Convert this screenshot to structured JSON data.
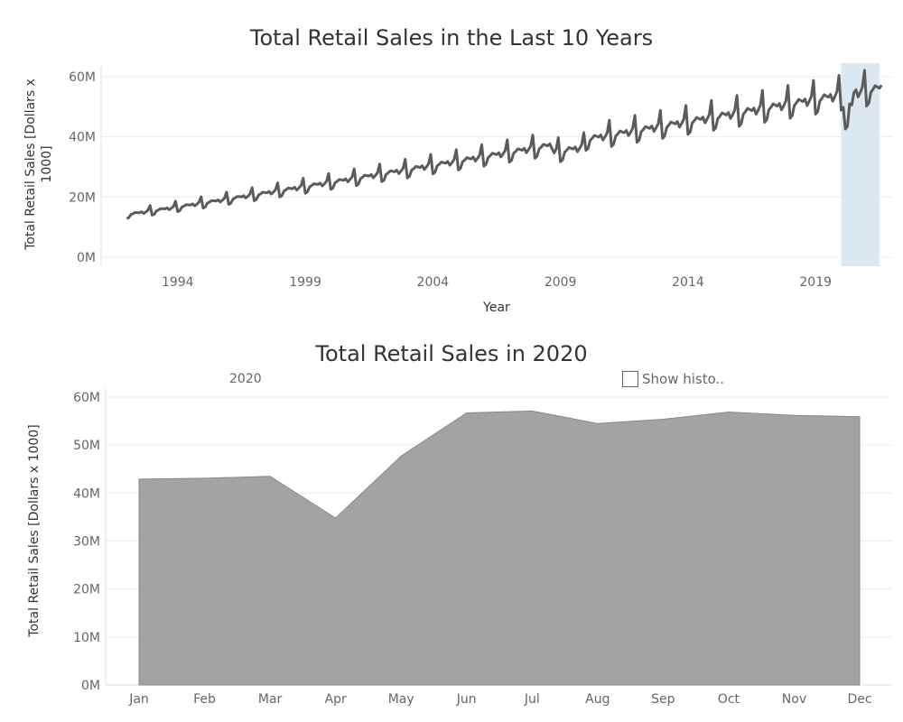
{
  "chart_data": [
    {
      "type": "line",
      "title": "Total Retail Sales in the Last 10 Years",
      "xlabel": "Year",
      "ylabel_lines": [
        "Total Retail Sales [Dollars x",
        "1000]"
      ],
      "x_ticks": [
        1994,
        1999,
        2004,
        2009,
        2014,
        2019
      ],
      "y_ticks": [
        "0M",
        "20M",
        "40M",
        "60M"
      ],
      "y_tick_values": [
        0,
        20000000,
        40000000,
        60000000
      ],
      "xlim": [
        1991,
        2022
      ],
      "ylim": [
        0,
        60000000
      ],
      "highlight_range": [
        2020.0,
        2021.5
      ],
      "highlight_color": "#dbe8ef",
      "line_color": "#5b5b5b",
      "start_year": 1992,
      "end_year": 2021.6,
      "base_start": 14000000,
      "base_end": 55500000,
      "seasonal_pattern": [
        -1.6,
        -1.3,
        0.0,
        0.3,
        0.7,
        0.5,
        0.3,
        0.6,
        -0.3,
        0.2,
        0.8,
        2.8
      ],
      "yearly_values": [
        {
          "year": 1992,
          "value": 13500000
        },
        {
          "year": 1995,
          "value": 17000000
        },
        {
          "year": 2000,
          "value": 22000000
        },
        {
          "year": 2005,
          "value": 29000000
        },
        {
          "year": 2010,
          "value": 32000000
        },
        {
          "year": 2015,
          "value": 41000000
        },
        {
          "year": 2019,
          "value": 49000000
        },
        {
          "year": 2020,
          "value": 50000000
        },
        {
          "year": 2021.5,
          "value": 60000000
        }
      ]
    },
    {
      "type": "area",
      "title": "Total Retail Sales in 2020",
      "header": "2020",
      "ylabel": "Total Retail Sales [Dollars x 1000]",
      "categories": [
        "Jan",
        "Feb",
        "Mar",
        "Apr",
        "May",
        "Jun",
        "Jul",
        "Aug",
        "Sep",
        "Oct",
        "Nov",
        "Dec"
      ],
      "values": [
        42900000,
        43100000,
        43500000,
        34800000,
        47700000,
        56700000,
        57100000,
        54500000,
        55400000,
        56900000,
        56200000,
        55900000
      ],
      "y_ticks": [
        "0M",
        "10M",
        "20M",
        "30M",
        "40M",
        "50M",
        "60M"
      ],
      "y_tick_values": [
        0,
        10000000,
        20000000,
        30000000,
        40000000,
        50000000,
        60000000
      ],
      "ylim": [
        0,
        60000000
      ],
      "fill_color": "#a3a3a3",
      "stroke_color": "#8a8a8a"
    }
  ],
  "controls": {
    "show_history_label": "Show histo.."
  }
}
